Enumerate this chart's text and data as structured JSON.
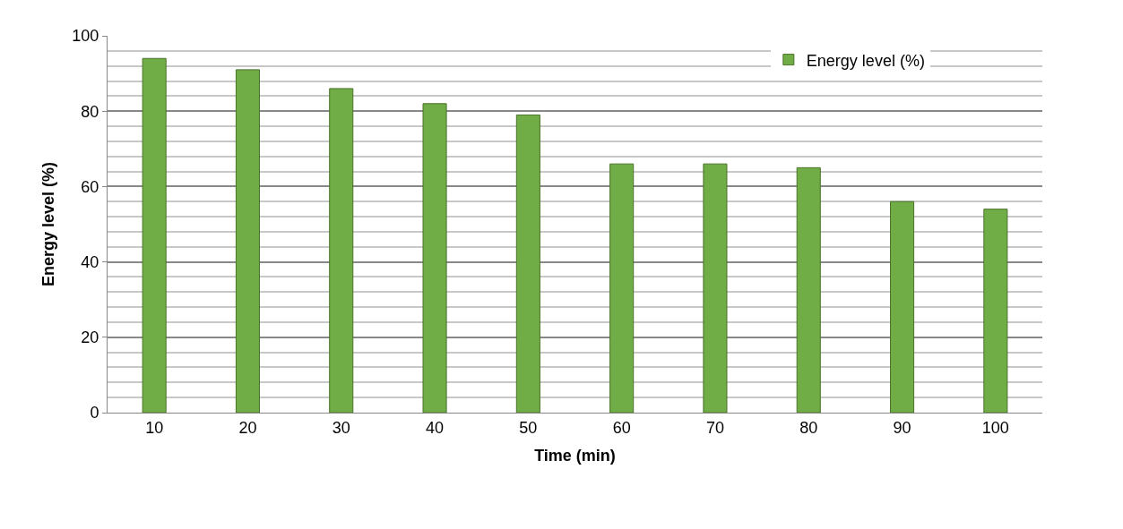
{
  "chart_data": {
    "type": "bar",
    "xlabel": "Time (min)",
    "ylabel": "Energy level (%)",
    "categories": [
      "10",
      "20",
      "30",
      "40",
      "50",
      "60",
      "70",
      "80",
      "90",
      "100"
    ],
    "series": [
      {
        "name": "Energy level (%)",
        "color": "#70ad47",
        "values": [
          94,
          91,
          86,
          82,
          79,
          66,
          66,
          65,
          56,
          54
        ]
      }
    ],
    "ylim": [
      0,
      100
    ],
    "yticks": [
      0,
      20,
      40,
      60,
      80,
      100
    ],
    "grid": "y",
    "legend": "top right"
  }
}
